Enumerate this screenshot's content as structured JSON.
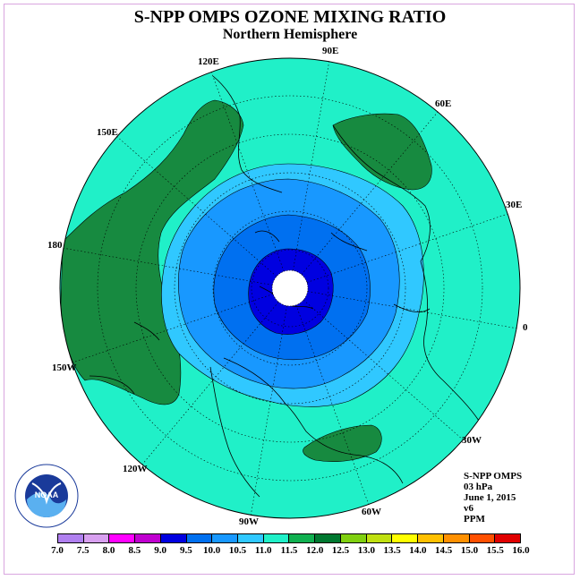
{
  "title": "S-NPP OMPS OZONE MIXING RATIO",
  "subtitle": "Northern Hemisphere",
  "longitude_labels": [
    "90E",
    "60E",
    "30E",
    "0",
    "30W",
    "60W",
    "90W",
    "120W",
    "150W",
    "180",
    "150E",
    "120E"
  ],
  "info": {
    "instrument": "S-NPP OMPS",
    "level": "03 hPa",
    "date": "June 1, 2015",
    "version": "v6",
    "units": "PPM"
  },
  "colorbar": {
    "ticks": [
      "7.0",
      "7.5",
      "8.0",
      "8.5",
      "9.0",
      "9.5",
      "10.0",
      "10.5",
      "11.0",
      "11.5",
      "12.0",
      "12.5",
      "13.0",
      "13.5",
      "14.0",
      "14.5",
      "15.0",
      "15.5",
      "16.0"
    ],
    "colors": [
      "#b080f0",
      "#d8a0f0",
      "#ff00ff",
      "#c000d0",
      "#0000e0",
      "#0070f0",
      "#1898ff",
      "#30c8ff",
      "#20f0c8",
      "#10b050",
      "#007830",
      "#80d010",
      "#c0e010",
      "#ffff00",
      "#ffc000",
      "#ff9000",
      "#ff5000",
      "#e00000",
      "#8b5a3c"
    ]
  },
  "map_colors": {
    "background": "#20f0c8",
    "high_band": "#178a40",
    "ring_10": "#30c8ff",
    "ring_95": "#1898ff",
    "ring_90": "#0070f0",
    "ring_85": "#0000e0",
    "center": "#ffffff"
  },
  "logo": {
    "text": "NOAA"
  }
}
